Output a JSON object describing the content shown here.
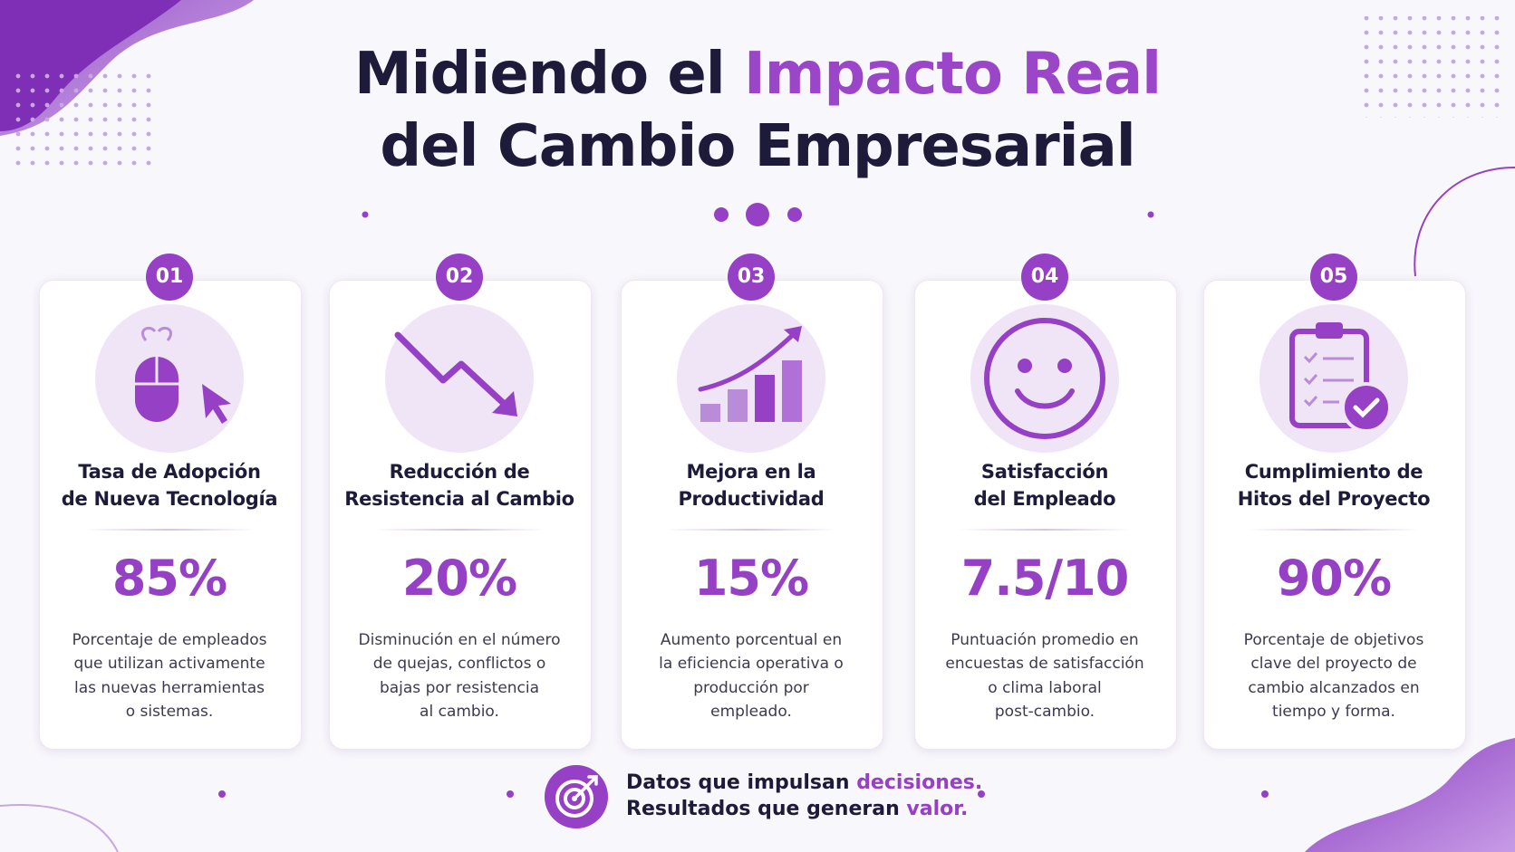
{
  "header": {
    "title_start": "Midiendo el",
    "title_highlight": "Impacto Real",
    "title_line2": "del Cambio Empresarial"
  },
  "cards": [
    {
      "number": "01",
      "title_lines": [
        "Tasa de Adopción",
        "de Nueva Tecnología"
      ],
      "value": "85%",
      "description_lines": [
        "Porcentaje de empleados",
        "que utilizan activamente",
        "las nuevas herramientas",
        "o sistemas."
      ]
    },
    {
      "number": "02",
      "title_lines": [
        "Reducción de",
        "Resistencia al Cambio"
      ],
      "value": "20%",
      "description_lines": [
        "Disminución en el número",
        "de quejas, conflictos o",
        "bajas por resistencia",
        "al cambio."
      ]
    },
    {
      "number": "03",
      "title_lines": [
        "Mejora en la",
        "Productividad"
      ],
      "value": "15%",
      "description_lines": [
        "Aumento porcentual en",
        "la eficiencia operativa o",
        "producción por",
        "empleado."
      ]
    },
    {
      "number": "04",
      "title_lines": [
        "Satisfacción",
        "del Empleado"
      ],
      "value": "7.5/10",
      "description_lines": [
        "Puntuación promedio en",
        "encuestas de satisfacción",
        "o clima laboral",
        "post-cambio."
      ]
    },
    {
      "number": "05",
      "title_lines": [
        "Cumplimiento de",
        "Hitos del Proyecto"
      ],
      "value": "90%",
      "description_lines": [
        "Porcentaje de objetivos",
        "clave del proyecto de",
        "cambio alcanzados en",
        "tiempo y forma."
      ]
    }
  ],
  "footer": {
    "line1_start": "Datos que impulsan",
    "line1_highlight": "decisiones.",
    "line2_start": "Resultados que generan",
    "line2_highlight": "valor."
  }
}
